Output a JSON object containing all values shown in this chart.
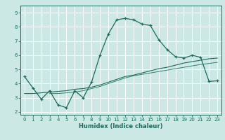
{
  "title": "",
  "xlabel": "Humidex (Indice chaleur)",
  "ylabel": "",
  "bg_color": "#cce8e4",
  "line_color": "#1a6b5a",
  "grid_color": "#ffffff",
  "xlim": [
    -0.5,
    23.5
  ],
  "ylim": [
    1.8,
    9.5
  ],
  "xticks": [
    0,
    1,
    2,
    3,
    4,
    5,
    6,
    7,
    8,
    9,
    10,
    11,
    12,
    13,
    14,
    15,
    16,
    17,
    18,
    19,
    20,
    21,
    22,
    23
  ],
  "yticks": [
    2,
    3,
    4,
    5,
    6,
    7,
    8,
    9
  ],
  "line1_x": [
    0,
    1,
    2,
    3,
    4,
    5,
    6,
    7,
    8,
    9,
    10,
    11,
    12,
    13,
    14,
    15,
    16,
    17,
    18,
    19,
    20,
    21,
    22,
    23
  ],
  "line1_y": [
    4.5,
    3.7,
    2.9,
    3.5,
    2.5,
    2.3,
    3.5,
    3.0,
    4.1,
    6.0,
    7.5,
    8.5,
    8.6,
    8.5,
    8.2,
    8.1,
    7.1,
    6.4,
    5.9,
    5.8,
    6.0,
    5.85,
    4.15,
    4.2
  ],
  "line2_x": [
    0,
    1,
    2,
    3,
    4,
    5,
    6,
    7,
    8,
    9,
    10,
    11,
    12,
    13,
    14,
    15,
    16,
    17,
    18,
    19,
    20,
    21,
    22,
    23
  ],
  "line2_y": [
    3.3,
    3.3,
    3.35,
    3.4,
    3.45,
    3.5,
    3.6,
    3.65,
    3.75,
    3.9,
    4.1,
    4.3,
    4.5,
    4.6,
    4.75,
    4.9,
    5.05,
    5.15,
    5.3,
    5.45,
    5.55,
    5.65,
    5.75,
    5.8
  ],
  "line3_x": [
    3,
    4,
    5,
    6,
    7,
    8,
    9,
    10,
    11,
    12,
    13,
    14,
    15,
    16,
    17,
    18,
    19,
    20,
    21,
    22,
    23
  ],
  "line3_y": [
    3.3,
    3.3,
    3.35,
    3.4,
    3.5,
    3.65,
    3.8,
    4.0,
    4.2,
    4.4,
    4.55,
    4.65,
    4.75,
    4.85,
    4.95,
    5.05,
    5.15,
    5.25,
    5.35,
    5.42,
    5.5
  ]
}
